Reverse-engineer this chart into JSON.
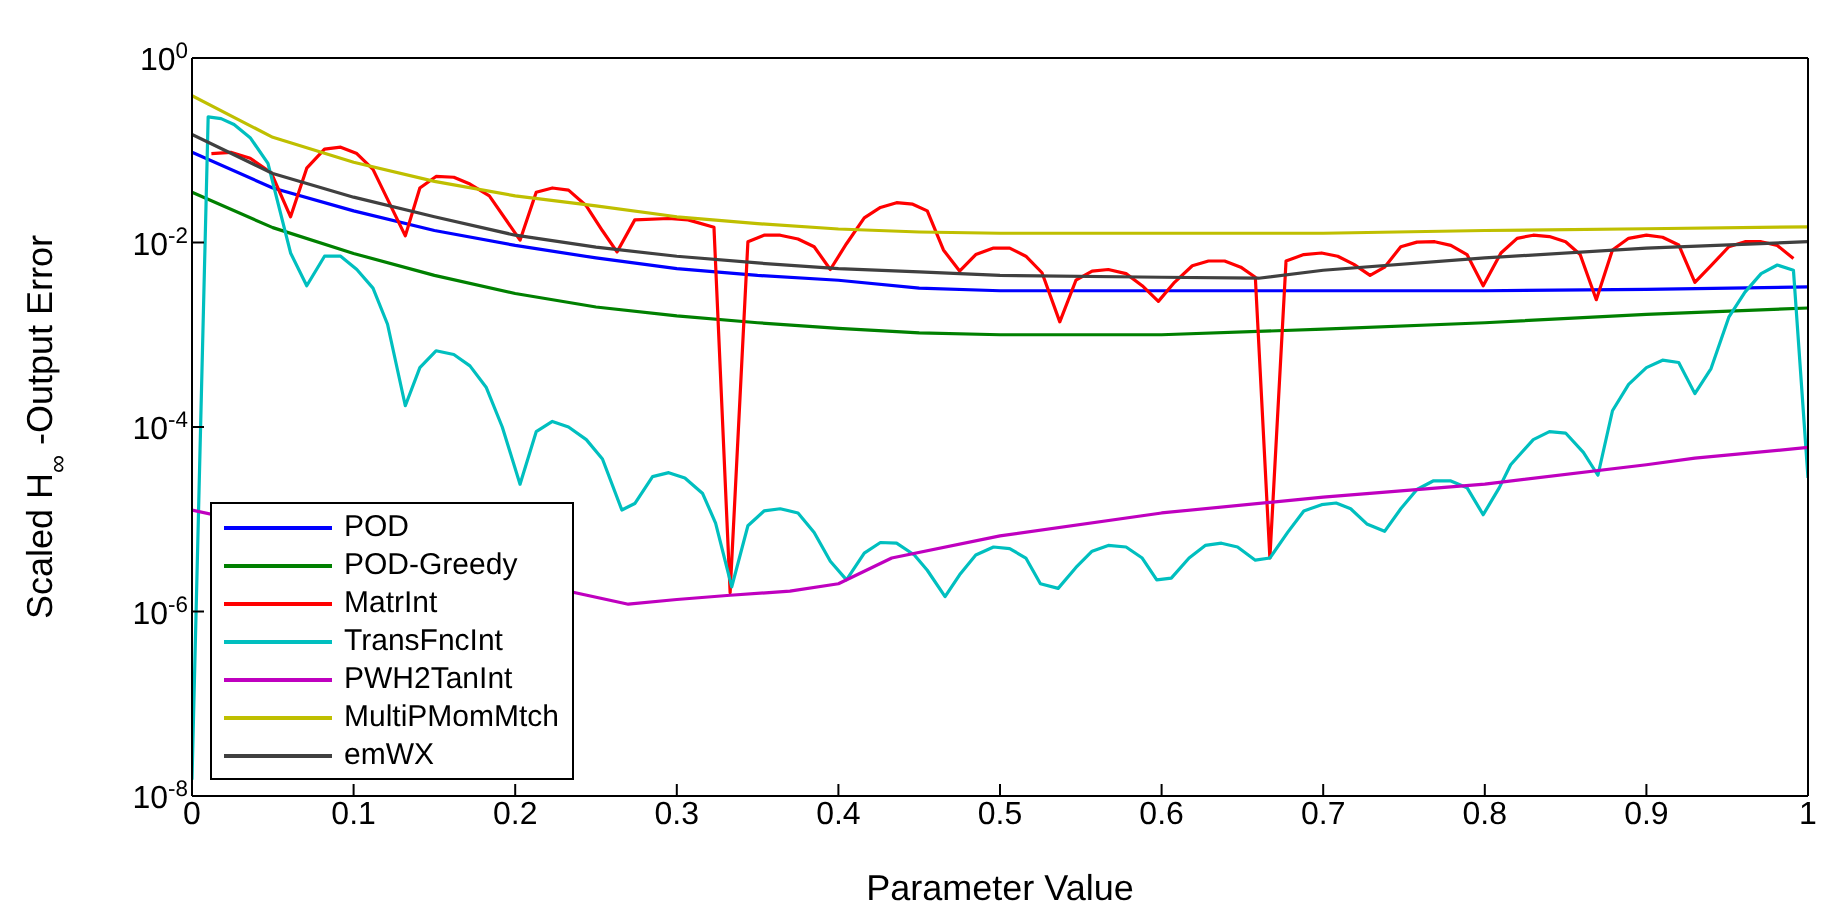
{
  "chart_data": {
    "type": "line",
    "xlabel": "Parameter Value",
    "ylabel": "Scaled H$_{∞}$ -Output Error",
    "log": "y",
    "legend": "bottom left",
    "xlim": [
      0,
      1
    ],
    "xticks": [
      0,
      0.1,
      0.2,
      0.3,
      0.4,
      0.5,
      0.6,
      0.7,
      0.8,
      0.9,
      1
    ],
    "ylim": [
      1e-08,
      1
    ],
    "yticks": [
      {
        "value": 1,
        "label": "10$^{0}$"
      },
      {
        "value": 0.01,
        "label": "10$^{-2}$"
      },
      {
        "value": 0.0001,
        "label": "10$^{-4}$"
      },
      {
        "value": 1e-06,
        "label": "10$^{-6}$"
      },
      {
        "value": 1e-08,
        "label": "10$^{-8}$"
      }
    ],
    "series": [
      {
        "name": "POD",
        "color": "#0000ff",
        "x": [
          0,
          0.05,
          0.1,
          0.15,
          0.2,
          0.25,
          0.3,
          0.35,
          0.4,
          0.45,
          0.5,
          0.6,
          0.7,
          0.8,
          0.9,
          1
        ],
        "values": [
          0.095,
          0.039,
          0.022,
          0.0135,
          0.0093,
          0.0068,
          0.0052,
          0.0044,
          0.0039,
          0.0032,
          0.003,
          0.003,
          0.003,
          0.003,
          0.0031,
          0.0033
        ]
      },
      {
        "name": "POD-Greedy",
        "color": "#008000",
        "x": [
          0,
          0.05,
          0.1,
          0.15,
          0.2,
          0.25,
          0.3,
          0.35,
          0.4,
          0.45,
          0.5,
          0.6,
          0.7,
          0.8,
          0.9,
          1
        ],
        "values": [
          0.035,
          0.0145,
          0.0076,
          0.0044,
          0.0028,
          0.002,
          0.0016,
          0.00135,
          0.00117,
          0.00105,
          0.001,
          0.001,
          0.00115,
          0.00135,
          0.00166,
          0.00195
        ]
      },
      {
        "name": "MatrInt",
        "color": "#ff0000",
        "x": [
          0.012,
          0.024,
          0.036,
          0.049,
          0.061,
          0.071,
          0.082,
          0.092,
          0.102,
          0.112,
          0.132,
          0.141,
          0.151,
          0.162,
          0.172,
          0.184,
          0.203,
          0.213,
          0.223,
          0.233,
          0.244,
          0.254,
          0.263,
          0.274,
          0.295,
          0.307,
          0.323,
          0.333,
          0.344,
          0.354,
          0.364,
          0.375,
          0.385,
          0.395,
          0.405,
          0.416,
          0.426,
          0.436,
          0.446,
          0.455,
          0.465,
          0.475,
          0.485,
          0.496,
          0.506,
          0.516,
          0.526,
          0.537,
          0.547,
          0.557,
          0.567,
          0.578,
          0.588,
          0.598,
          0.608,
          0.619,
          0.629,
          0.639,
          0.649,
          0.658,
          0.667,
          0.677,
          0.688,
          0.699,
          0.709,
          0.719,
          0.729,
          0.738,
          0.748,
          0.758,
          0.769,
          0.779,
          0.789,
          0.799,
          0.81,
          0.82,
          0.83,
          0.84,
          0.85,
          0.859,
          0.869,
          0.879,
          0.889,
          0.9,
          0.91,
          0.92,
          0.93,
          0.94,
          0.951,
          0.961,
          0.971,
          0.981,
          0.991
        ],
        "values": [
          0.092,
          0.095,
          0.082,
          0.057,
          0.019,
          0.064,
          0.103,
          0.108,
          0.092,
          0.062,
          0.0118,
          0.039,
          0.052,
          0.051,
          0.043,
          0.032,
          0.0106,
          0.035,
          0.039,
          0.037,
          0.025,
          0.0134,
          0.0079,
          0.0176,
          0.0182,
          0.0176,
          0.0146,
          1.6e-06,
          0.0102,
          0.012,
          0.012,
          0.0109,
          0.009,
          0.0051,
          0.0097,
          0.0185,
          0.024,
          0.027,
          0.026,
          0.022,
          0.0083,
          0.0049,
          0.0074,
          0.0087,
          0.0087,
          0.0071,
          0.0047,
          0.00138,
          0.0039,
          0.0049,
          0.0051,
          0.0046,
          0.0034,
          0.0023,
          0.0037,
          0.0056,
          0.0063,
          0.0063,
          0.0054,
          0.0042,
          3.8e-06,
          0.0063,
          0.0074,
          0.0077,
          0.0071,
          0.0058,
          0.0044,
          0.0054,
          0.009,
          0.0101,
          0.0102,
          0.0093,
          0.0074,
          0.0034,
          0.0077,
          0.0111,
          0.012,
          0.0116,
          0.0102,
          0.0074,
          0.0024,
          0.0083,
          0.0111,
          0.012,
          0.0114,
          0.0094,
          0.0037,
          0.0056,
          0.009,
          0.0102,
          0.0102,
          0.0093,
          0.0067
        ]
      },
      {
        "name": "TransFncInt",
        "color": "#00bfbf",
        "x": [
          0,
          0.01,
          0.018,
          0.026,
          0.036,
          0.047,
          0.061,
          0.071,
          0.082,
          0.092,
          0.102,
          0.112,
          0.121,
          0.132,
          0.141,
          0.151,
          0.162,
          0.172,
          0.182,
          0.192,
          0.203,
          0.213,
          0.223,
          0.233,
          0.244,
          0.254,
          0.266,
          0.274,
          0.285,
          0.295,
          0.305,
          0.316,
          0.324,
          0.334,
          0.344,
          0.354,
          0.364,
          0.375,
          0.385,
          0.395,
          0.405,
          0.416,
          0.426,
          0.436,
          0.447,
          0.455,
          0.466,
          0.475,
          0.485,
          0.496,
          0.506,
          0.516,
          0.525,
          0.536,
          0.547,
          0.557,
          0.567,
          0.578,
          0.588,
          0.597,
          0.606,
          0.617,
          0.627,
          0.637,
          0.647,
          0.658,
          0.667,
          0.678,
          0.688,
          0.699,
          0.708,
          0.717,
          0.727,
          0.738,
          0.748,
          0.758,
          0.768,
          0.779,
          0.789,
          0.799,
          0.809,
          0.816,
          0.83,
          0.84,
          0.85,
          0.861,
          0.87,
          0.879,
          0.889,
          0.9,
          0.91,
          0.92,
          0.93,
          0.94,
          0.951,
          0.961,
          0.971,
          0.981,
          0.991,
          1
        ],
        "values": [
          1.5e-08,
          0.23,
          0.22,
          0.19,
          0.137,
          0.072,
          0.0077,
          0.0034,
          0.0071,
          0.0071,
          0.0051,
          0.0032,
          0.0013,
          0.00017,
          0.00044,
          0.00067,
          0.00061,
          0.00046,
          0.00027,
          0.0001,
          2.4e-05,
          8.9e-05,
          0.000115,
          0.0001,
          7.3e-05,
          4.5e-05,
          1.26e-05,
          1.48e-05,
          2.9e-05,
          3.2e-05,
          2.8e-05,
          1.9e-05,
          9.1e-06,
          1.85e-06,
          8.5e-06,
          1.23e-05,
          1.3e-05,
          1.17e-05,
          7.2e-06,
          3.5e-06,
          2.2e-06,
          4.3e-06,
          5.6e-06,
          5.5e-06,
          4.1e-06,
          2.8e-06,
          1.45e-06,
          2.5e-06,
          4.1e-06,
          5e-06,
          4.8e-06,
          3.8e-06,
          2e-06,
          1.78e-06,
          3e-06,
          4.5e-06,
          5.2e-06,
          5e-06,
          3.8e-06,
          2.2e-06,
          2.3e-06,
          3.8e-06,
          5.2e-06,
          5.5e-06,
          5e-06,
          3.6e-06,
          3.8e-06,
          7.2e-06,
          1.23e-05,
          1.44e-05,
          1.5e-05,
          1.3e-05,
          8.9e-06,
          7.4e-06,
          1.3e-05,
          2.1e-05,
          2.6e-05,
          2.6e-05,
          2.2e-05,
          1.12e-05,
          2.2e-05,
          3.9e-05,
          7.3e-05,
          8.9e-05,
          8.6e-05,
          5.3e-05,
          3e-05,
          0.00015,
          0.00029,
          0.00044,
          0.00053,
          0.0005,
          0.00023,
          0.00043,
          0.00155,
          0.0029,
          0.0046,
          0.0057,
          0.005,
          2.8e-05
        ]
      },
      {
        "name": "PWH2TanInt",
        "color": "#bf00bf",
        "x": [
          0,
          0.27,
          0.3,
          0.333,
          0.37,
          0.4,
          0.433,
          0.5,
          0.6,
          0.7,
          0.8,
          0.9,
          0.93,
          1
        ],
        "values": [
          1.26e-05,
          1.2e-06,
          1.35e-06,
          1.5e-06,
          1.66e-06,
          2e-06,
          3.8e-06,
          6.6e-06,
          1.17e-05,
          1.74e-05,
          2.4e-05,
          3.9e-05,
          4.6e-05,
          6e-05
        ]
      },
      {
        "name": "MultiPMomMtch",
        "color": "#bfbf00",
        "x": [
          0,
          0.05,
          0.1,
          0.15,
          0.2,
          0.25,
          0.3,
          0.35,
          0.4,
          0.45,
          0.5,
          0.6,
          0.7,
          0.8,
          0.9,
          1
        ],
        "values": [
          0.39,
          0.138,
          0.074,
          0.046,
          0.032,
          0.025,
          0.019,
          0.016,
          0.014,
          0.013,
          0.0126,
          0.0126,
          0.0126,
          0.0135,
          0.0141,
          0.0148
        ]
      },
      {
        "name": "emWX",
        "color": "#404040",
        "x": [
          0,
          0.05,
          0.1,
          0.15,
          0.2,
          0.25,
          0.3,
          0.35,
          0.4,
          0.45,
          0.5,
          0.6,
          0.66,
          0.7,
          0.8,
          0.9,
          1
        ],
        "values": [
          0.148,
          0.056,
          0.031,
          0.019,
          0.012,
          0.0089,
          0.0071,
          0.006,
          0.0052,
          0.0048,
          0.0044,
          0.0042,
          0.0041,
          0.005,
          0.0068,
          0.0087,
          0.0102
        ]
      }
    ]
  }
}
